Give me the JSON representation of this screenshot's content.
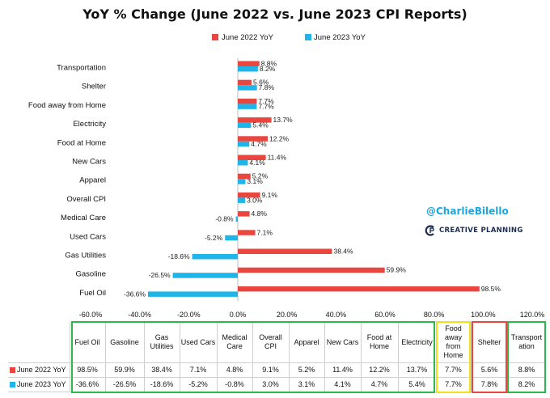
{
  "title": "YoY % Change (June 2022 vs. June 2023 CPI Reports)",
  "handle": "@CharlieBilello",
  "brand": "CREATIVE PLANNING",
  "colors": {
    "june2022": "#e8463f",
    "june2023": "#1fb5e8",
    "green_box": "#2db84b",
    "yellow_box": "#f0e21a",
    "red_box": "#e8463f"
  },
  "chart_data": {
    "type": "bar",
    "orientation": "horizontal",
    "categories": [
      "Transportation",
      "Shelter",
      "Food away from Home",
      "Electricity",
      "Food at Home",
      "New Cars",
      "Apparel",
      "Overall CPI",
      "Medical Care",
      "Used Cars",
      "Gas Utilities",
      "Gasoline",
      "Fuel Oil"
    ],
    "series": [
      {
        "name": "June 2022 YoY",
        "values": [
          8.8,
          5.6,
          7.7,
          13.7,
          12.2,
          11.4,
          5.2,
          9.1,
          4.8,
          7.1,
          38.4,
          59.9,
          98.5
        ],
        "labels": [
          "8.8%",
          "5.6%",
          "7.7%",
          "13.7%",
          "12.2%",
          "11.4%",
          "5.2%",
          "9.1%",
          "4.8%",
          "7.1%",
          "38.4%",
          "59.9%",
          "98.5%"
        ]
      },
      {
        "name": "June 2023 YoY",
        "values": [
          8.2,
          7.8,
          7.7,
          5.4,
          4.7,
          4.1,
          3.1,
          3.0,
          -0.8,
          -5.2,
          -18.6,
          -26.5,
          -36.6
        ],
        "labels": [
          "8.2%",
          "7.8%",
          "7.7%",
          "5.4%",
          "4.7%",
          "4.1%",
          "3.1%",
          "3.0%",
          "-0.8%",
          "-5.2%",
          "-18.6%",
          "-26.5%",
          "-36.6%"
        ]
      }
    ],
    "xlim": [
      -60,
      120
    ],
    "xticks": [
      -60,
      -40,
      -20,
      0,
      20,
      40,
      60,
      80,
      100,
      120
    ],
    "xtick_labels": [
      "-60.0%",
      "-40.0%",
      "-20.0%",
      "0.0%",
      "20.0%",
      "40.0%",
      "60.0%",
      "80.0%",
      "100.0%",
      "120.0%"
    ],
    "legend": [
      "June 2022 YoY",
      "June 2023 YoY"
    ],
    "legend_position": "top",
    "grid": false
  },
  "table": {
    "columns": [
      "Fuel Oil",
      "Gasoline",
      "Gas Utilities",
      "Used Cars",
      "Medical Care",
      "Overall CPI",
      "Apparel",
      "New Cars",
      "Food at Home",
      "Electricity",
      "Food away from Home",
      "Shelter",
      "Transportation"
    ],
    "column_display": [
      "Fuel Oil",
      "Gasoline",
      "Gas\nUtilities",
      "Used Cars",
      "Medical\nCare",
      "Overall\nCPI",
      "Apparel",
      "New Cars",
      "Food at\nHome",
      "Electricity",
      "Food\naway\nfrom\nHome",
      "Shelter",
      "Transport\nation"
    ],
    "rows": [
      {
        "label": "June 2022 YoY",
        "values": [
          "98.5%",
          "59.9%",
          "38.4%",
          "7.1%",
          "4.8%",
          "9.1%",
          "5.2%",
          "11.4%",
          "12.2%",
          "13.7%",
          "7.7%",
          "5.6%",
          "8.8%"
        ]
      },
      {
        "label": "June 2023 YoY",
        "values": [
          "-36.6%",
          "-26.5%",
          "-18.6%",
          "-5.2%",
          "-0.8%",
          "3.0%",
          "3.1%",
          "4.1%",
          "4.7%",
          "5.4%",
          "7.7%",
          "7.8%",
          "8.2%"
        ]
      }
    ]
  }
}
